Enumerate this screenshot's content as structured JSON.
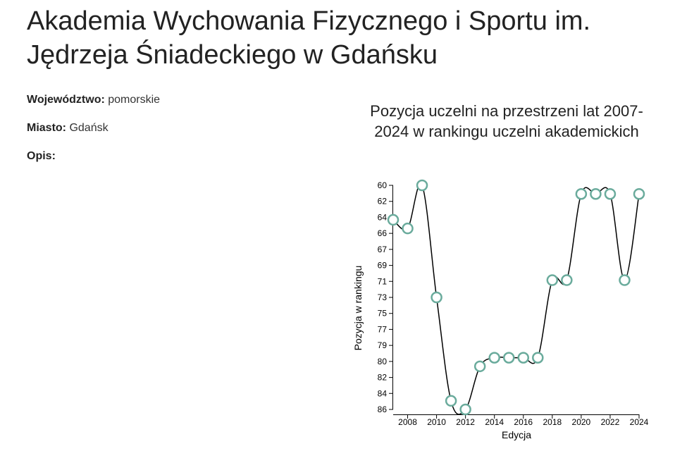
{
  "header": {
    "title": "Akademia Wychowania Fizycznego i Sportu im. Jędrzeja Śniadeckiego w Gdańsku"
  },
  "details": [
    {
      "label": "Województwo:",
      "value": "pomorskie"
    },
    {
      "label": "Miasto:",
      "value": "Gdańsk"
    },
    {
      "label": "Opis:"
    }
  ],
  "chart_data": {
    "type": "line",
    "title": "Pozycja uczelni na przestrzeni lat 2007-2024 w rankingu uczelni akademickich",
    "x_label": "Edycja",
    "y_label": "Pozycja w rankingu",
    "x": [
      2007,
      2008,
      2009,
      2010,
      2011,
      2012,
      2013,
      2014,
      2015,
      2016,
      2017,
      2018,
      2019,
      2020,
      2021,
      2022,
      2023,
      2024
    ],
    "values": [
      64,
      65,
      60,
      73,
      85,
      86,
      81,
      80,
      80,
      80,
      80,
      71,
      71,
      61,
      61,
      61,
      71,
      61
    ],
    "line_color": "#000000",
    "marker_color": "#6aab9c",
    "xlim": [
      2007,
      2024
    ],
    "xticks": [
      2008,
      2010,
      2012,
      2014,
      2016,
      2018,
      2020,
      2022,
      2024
    ],
    "ylim": [
      60,
      86
    ],
    "y_inverted": true,
    "yticks": [
      60,
      {
        "value": 61.86,
        "label": "62"
      },
      {
        "value": 63.71,
        "label": "64"
      },
      {
        "value": 65.57,
        "label": "66"
      },
      {
        "value": 67.43,
        "label": "67"
      },
      {
        "value": 69.29,
        "label": "69"
      },
      {
        "value": 71.14,
        "label": "71"
      },
      73,
      {
        "value": 74.86,
        "label": "75"
      },
      {
        "value": 76.71,
        "label": "77"
      },
      {
        "value": 78.57,
        "label": "79"
      },
      {
        "value": 80.43,
        "label": "80"
      },
      {
        "value": 82.29,
        "label": "82"
      },
      {
        "value": 84.14,
        "label": "84"
      },
      86
    ]
  }
}
